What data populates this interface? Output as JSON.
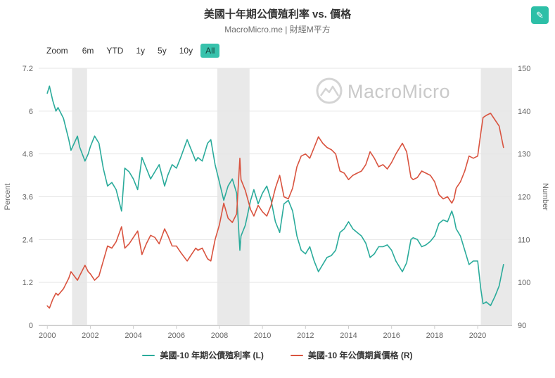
{
  "header": {
    "title": "美國十年期公債殖利率 vs. 價格",
    "subtitle": "MacroMicro.me | 財經M平方",
    "edit_icon_glyph": "✎"
  },
  "toolbar": {
    "zoom_label": "Zoom",
    "buttons": [
      {
        "label": "6m",
        "selected": false
      },
      {
        "label": "YTD",
        "selected": false
      },
      {
        "label": "1y",
        "selected": false
      },
      {
        "label": "5y",
        "selected": false
      },
      {
        "label": "10y",
        "selected": false
      },
      {
        "label": "All",
        "selected": true
      }
    ]
  },
  "watermark": {
    "icon": "macromicro-logo",
    "text": "MacroMicro"
  },
  "colors": {
    "accent_teal": "#2dbfa7",
    "series_teal": "#2aab9b",
    "series_red": "#d9533f",
    "band_gray": "#e9e9e9",
    "grid_gray": "#e6e6e6"
  },
  "chart_data": {
    "type": "line",
    "title": "美國十年期公債殖利率 vs. 價格",
    "grid": true,
    "legend_position": "bottom",
    "x_axis": {
      "range": [
        1999.6,
        2021.6
      ],
      "ticks": [
        2000,
        2002,
        2004,
        2006,
        2008,
        2010,
        2012,
        2014,
        2016,
        2018,
        2020
      ]
    },
    "y_left": {
      "label": "Percent",
      "range": [
        0,
        7.2
      ],
      "ticks": [
        0,
        1.2,
        2.4,
        3.6,
        4.8,
        6,
        7.2
      ]
    },
    "y_right": {
      "label": "Number",
      "range": [
        90,
        150
      ],
      "ticks": [
        90,
        100,
        110,
        120,
        130,
        140,
        150
      ]
    },
    "recession_bands": [
      [
        2001.15,
        2001.85
      ],
      [
        2007.9,
        2009.4
      ],
      [
        2020.15,
        2021.6
      ]
    ],
    "x": [
      2000.0,
      2000.1,
      2000.25,
      2000.4,
      2000.5,
      2000.75,
      2001.0,
      2001.1,
      2001.25,
      2001.4,
      2001.5,
      2001.75,
      2001.9,
      2002.0,
      2002.2,
      2002.4,
      2002.6,
      2002.8,
      2003.0,
      2003.2,
      2003.45,
      2003.6,
      2003.8,
      2004.0,
      2004.2,
      2004.4,
      2004.6,
      2004.8,
      2005.0,
      2005.2,
      2005.45,
      2005.6,
      2005.8,
      2006.0,
      2006.2,
      2006.5,
      2006.7,
      2006.9,
      2007.0,
      2007.2,
      2007.45,
      2007.6,
      2007.8,
      2008.0,
      2008.2,
      2008.4,
      2008.6,
      2008.8,
      2008.95,
      2009.0,
      2009.2,
      2009.45,
      2009.6,
      2009.8,
      2010.0,
      2010.2,
      2010.4,
      2010.6,
      2010.8,
      2011.0,
      2011.2,
      2011.4,
      2011.6,
      2011.8,
      2012.0,
      2012.2,
      2012.4,
      2012.6,
      2012.8,
      2013.0,
      2013.2,
      2013.4,
      2013.6,
      2013.8,
      2014.0,
      2014.2,
      2014.4,
      2014.6,
      2014.8,
      2015.0,
      2015.2,
      2015.4,
      2015.6,
      2015.8,
      2016.0,
      2016.2,
      2016.5,
      2016.7,
      2016.9,
      2017.0,
      2017.2,
      2017.4,
      2017.6,
      2017.8,
      2018.0,
      2018.2,
      2018.4,
      2018.6,
      2018.8,
      2018.9,
      2019.0,
      2019.2,
      2019.4,
      2019.6,
      2019.8,
      2020.0,
      2020.15,
      2020.25,
      2020.4,
      2020.6,
      2020.8,
      2021.0,
      2021.1,
      2021.2
    ],
    "series": [
      {
        "name": "美國-10 年期公債殖利率 (L)",
        "axis": "left",
        "color": "#2aab9b",
        "values": [
          6.5,
          6.7,
          6.3,
          6.0,
          6.1,
          5.8,
          5.2,
          4.9,
          5.1,
          5.3,
          5.0,
          4.6,
          4.8,
          5.0,
          5.3,
          5.1,
          4.4,
          3.9,
          4.0,
          3.8,
          3.2,
          4.4,
          4.3,
          4.1,
          3.8,
          4.7,
          4.4,
          4.1,
          4.3,
          4.5,
          3.9,
          4.2,
          4.5,
          4.4,
          4.7,
          5.2,
          4.9,
          4.6,
          4.7,
          4.6,
          5.1,
          5.2,
          4.5,
          4.0,
          3.5,
          3.9,
          4.1,
          3.7,
          2.1,
          2.5,
          2.8,
          3.5,
          3.8,
          3.4,
          3.7,
          3.9,
          3.5,
          2.9,
          2.6,
          3.4,
          3.5,
          3.2,
          2.5,
          2.1,
          2.0,
          2.2,
          1.8,
          1.5,
          1.7,
          1.9,
          1.95,
          2.1,
          2.6,
          2.7,
          2.9,
          2.7,
          2.6,
          2.5,
          2.3,
          1.9,
          2.0,
          2.2,
          2.2,
          2.25,
          2.1,
          1.8,
          1.5,
          1.75,
          2.4,
          2.45,
          2.4,
          2.2,
          2.25,
          2.35,
          2.5,
          2.85,
          2.95,
          2.9,
          3.2,
          3.0,
          2.7,
          2.5,
          2.1,
          1.7,
          1.8,
          1.8,
          1.0,
          0.6,
          0.65,
          0.55,
          0.8,
          1.1,
          1.4,
          1.7
        ]
      },
      {
        "name": "美國-10 年公債期貨價格 (R)",
        "axis": "right",
        "color": "#d9533f",
        "values": [
          94.5,
          94.0,
          96.0,
          97.5,
          97.0,
          98.5,
          101.0,
          102.5,
          101.5,
          100.5,
          101.5,
          104.0,
          102.5,
          102.0,
          100.5,
          101.5,
          105.0,
          108.5,
          108.0,
          109.5,
          113.0,
          108.0,
          109.0,
          110.5,
          112.0,
          106.5,
          109.0,
          111.0,
          110.5,
          109.0,
          112.5,
          111.0,
          108.5,
          108.5,
          107.0,
          105.0,
          106.5,
          108.0,
          107.5,
          108.0,
          105.5,
          105.0,
          110.0,
          113.5,
          118.5,
          115.0,
          114.0,
          116.0,
          129.0,
          124.0,
          121.5,
          117.0,
          115.5,
          118.0,
          116.5,
          115.5,
          118.0,
          122.0,
          125.0,
          120.0,
          119.5,
          122.0,
          127.0,
          129.5,
          130.0,
          129.0,
          131.5,
          134.0,
          132.5,
          131.5,
          131.0,
          130.0,
          126.0,
          125.5,
          124.0,
          125.0,
          125.5,
          126.0,
          127.5,
          130.5,
          129.0,
          127.0,
          127.5,
          126.5,
          128.0,
          130.0,
          132.5,
          130.5,
          124.5,
          124.0,
          124.5,
          126.0,
          125.5,
          125.0,
          123.5,
          120.5,
          119.5,
          120.0,
          118.5,
          119.5,
          122.0,
          123.5,
          126.0,
          129.5,
          129.0,
          129.5,
          135.0,
          138.5,
          139.0,
          139.5,
          138.0,
          136.5,
          134.0,
          131.5
        ]
      }
    ]
  },
  "legend": {
    "items": [
      {
        "label": "美國-10 年期公債殖利率 (L)"
      },
      {
        "label": "美國-10 年公債期貨價格 (R)"
      }
    ]
  }
}
